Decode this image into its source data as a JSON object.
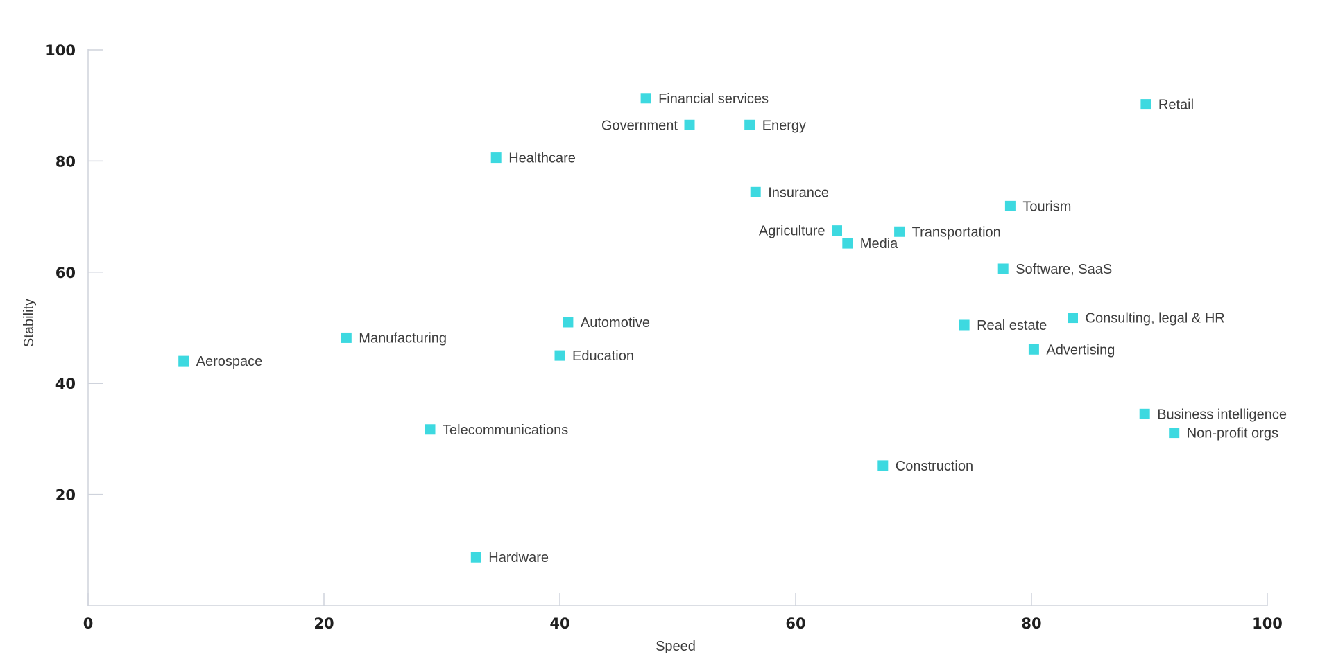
{
  "colors": {
    "marker": "#3dd9e0",
    "axis": "#cfd3dc",
    "text": "#3d3d3d"
  },
  "chart_data": {
    "type": "scatter",
    "xlabel": "Speed",
    "ylabel": "Stability",
    "xlim": [
      0,
      100
    ],
    "ylim": [
      0,
      100
    ],
    "x_ticks": [
      0,
      20,
      40,
      60,
      80,
      100
    ],
    "y_ticks": [
      20,
      40,
      60,
      80,
      100
    ],
    "grid": false,
    "points": [
      {
        "label": "Financial services",
        "x": 47.3,
        "y": 91.3
      },
      {
        "label": "Government",
        "x": 51.0,
        "y": 86.5
      },
      {
        "label": "Energy",
        "x": 56.1,
        "y": 86.5
      },
      {
        "label": "Retail",
        "x": 89.7,
        "y": 90.2
      },
      {
        "label": "Healthcare",
        "x": 34.6,
        "y": 80.6
      },
      {
        "label": "Insurance",
        "x": 56.6,
        "y": 74.4
      },
      {
        "label": "Tourism",
        "x": 78.2,
        "y": 71.9
      },
      {
        "label": "Agriculture",
        "x": 63.5,
        "y": 67.5
      },
      {
        "label": "Media",
        "x": 64.4,
        "y": 65.2
      },
      {
        "label": "Transportation",
        "x": 68.8,
        "y": 67.3
      },
      {
        "label": "Software, SaaS",
        "x": 77.6,
        "y": 60.6
      },
      {
        "label": "Automotive",
        "x": 40.7,
        "y": 51.0
      },
      {
        "label": "Real estate",
        "x": 74.3,
        "y": 50.5
      },
      {
        "label": "Consulting, legal & HR",
        "x": 83.5,
        "y": 51.8
      },
      {
        "label": "Manufacturing",
        "x": 21.9,
        "y": 48.2
      },
      {
        "label": "Aerospace",
        "x": 8.1,
        "y": 44.0
      },
      {
        "label": "Education",
        "x": 40.0,
        "y": 45.0
      },
      {
        "label": "Advertising",
        "x": 80.2,
        "y": 46.1
      },
      {
        "label": "Business intelligence",
        "x": 89.6,
        "y": 34.5
      },
      {
        "label": "Non-profit orgs",
        "x": 92.1,
        "y": 31.1
      },
      {
        "label": "Telecommunications",
        "x": 29.0,
        "y": 31.7
      },
      {
        "label": "Construction",
        "x": 67.4,
        "y": 25.2
      },
      {
        "label": "Hardware",
        "x": 32.9,
        "y": 8.7
      }
    ]
  }
}
